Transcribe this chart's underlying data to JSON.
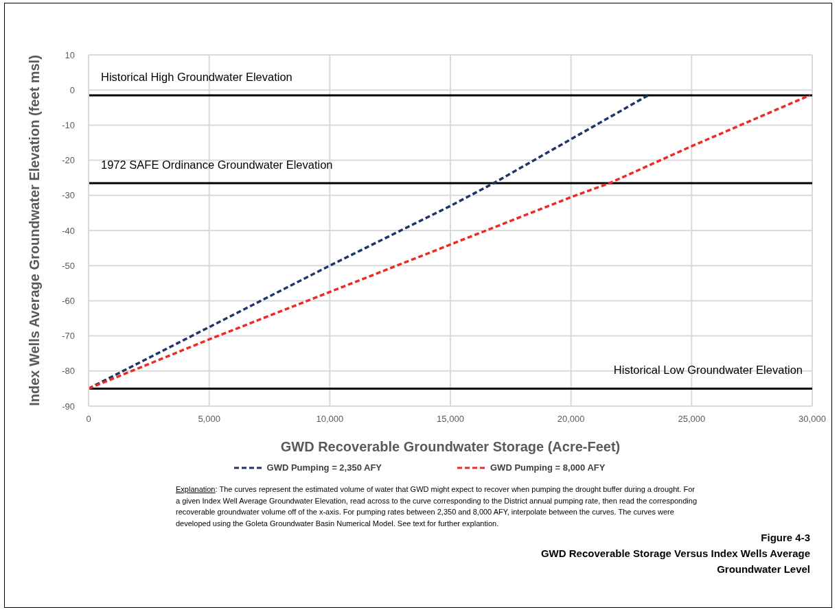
{
  "chart_data": {
    "type": "line",
    "title": "Figure 4-3",
    "subtitle": "GWD Recoverable Storage Versus Index Wells Average Groundwater Level",
    "xlabel": "GWD Recoverable Groundwater Storage (Acre-Feet)",
    "ylabel": "Index Wells Average Groundwater Elevation (feet msl)",
    "series": [
      {
        "name": "GWD Pumping = 2,350 AFY",
        "color": "#1f3468",
        "x": [
          0,
          5000,
          10000,
          15000,
          16800,
          20000,
          23200
        ],
        "values": [
          -85,
          -67.5,
          -50,
          -33,
          -26.5,
          -14,
          -1.5
        ]
      },
      {
        "name": "GWD Pumping = 8,000 AFY",
        "color": "#ee2a24",
        "x": [
          0,
          5000,
          10000,
          15000,
          20000,
          21600,
          25000,
          29900
        ],
        "values": [
          -85,
          -71,
          -57.5,
          -44,
          -30.5,
          -26.5,
          -16,
          -1.5
        ]
      }
    ],
    "line_style": "dashed",
    "marker": "none",
    "xlim": [
      0,
      30000
    ],
    "xticks": [
      {
        "value": 0,
        "label": "0"
      },
      {
        "value": 5000,
        "label": "5,000"
      },
      {
        "value": 10000,
        "label": "10,000"
      },
      {
        "value": 15000,
        "label": "15,000"
      },
      {
        "value": 20000,
        "label": "20,000"
      },
      {
        "value": 25000,
        "label": "25,000"
      },
      {
        "value": 30000,
        "label": "30,000"
      }
    ],
    "ylim": [
      -90,
      10
    ],
    "yticks": [
      10,
      0,
      -10,
      -20,
      -30,
      -40,
      -50,
      -60,
      -70,
      -80,
      -90
    ],
    "grid": true,
    "legend": "bottom",
    "ref_lines": [
      {
        "axis": "y",
        "value": -1.5,
        "label": "Historical High Groundwater Elevation",
        "color": "#000000"
      },
      {
        "axis": "y",
        "value": -26.5,
        "label": "1972 SAFE Ordinance Groundwater Elevation",
        "color": "#000000"
      },
      {
        "axis": "y",
        "value": -85,
        "label": "Historical Low Groundwater Elevation",
        "color": "#000000"
      }
    ],
    "annotations": [
      "Explanation: The curves represent the estimated volume of water that GWD might expect to recover when pumping the drought buffer during a drought.  For a given Index Well Average Groundwater Elevation, read across to the curve corresponding to the District annual pumping rate, then read the corresponding recoverable groundwater volume off of the x-axis. For pumping rates between 2,350 and 8,000 AFY, interpolate between the curves.  The curves were developed using the Goleta Groundwater Basin Numerical Model.  See text for further explantion."
    ]
  }
}
